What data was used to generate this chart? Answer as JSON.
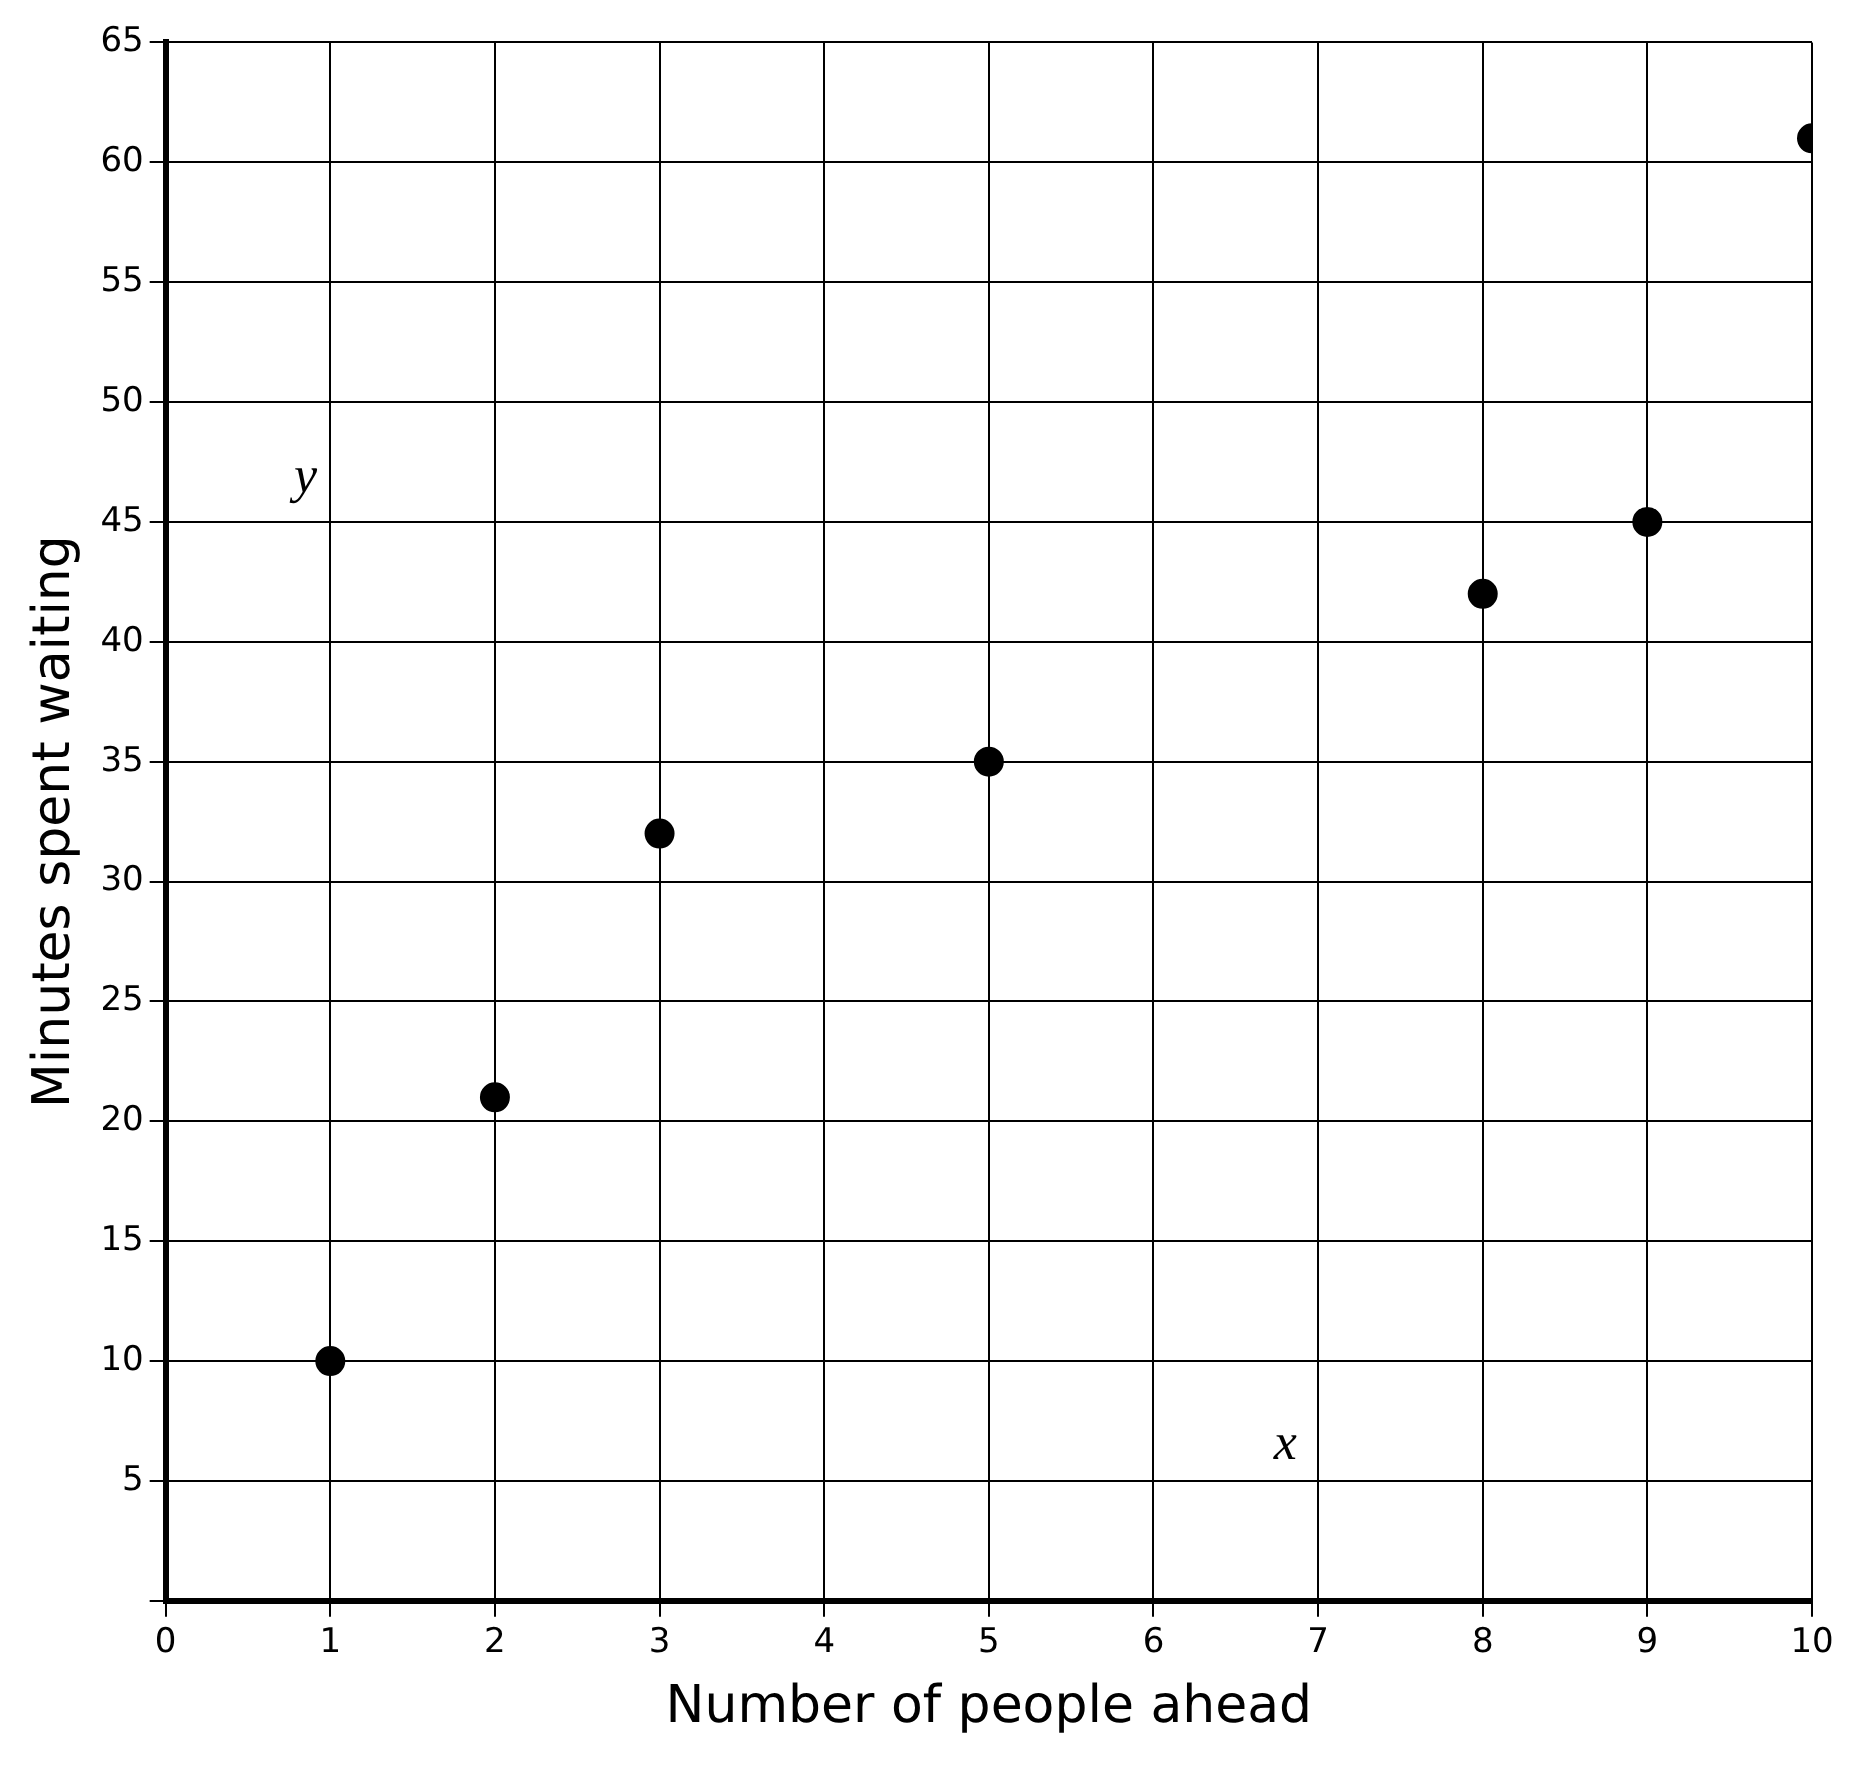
{
  "chart_data": {
    "type": "scatter",
    "xlabel": "Number of people ahead",
    "ylabel": "Minutes spent waiting",
    "annotations": [
      "y",
      "x"
    ],
    "x": [
      1,
      2,
      3,
      5,
      8,
      9,
      10
    ],
    "values": [
      10,
      21,
      32,
      35,
      42,
      45,
      61
    ],
    "color": "#000000",
    "marker": "circle",
    "xlim": [
      0,
      10
    ],
    "xticks": [
      0,
      1,
      2,
      3,
      4,
      5,
      6,
      7,
      8,
      9,
      10
    ],
    "ylim": [
      0,
      65
    ],
    "yticks": [
      {
        "value": 0,
        "label": null
      },
      5,
      10,
      15,
      20,
      25,
      30,
      35,
      40,
      45,
      50,
      55,
      60,
      65
    ],
    "grid": true,
    "legend": false
  }
}
